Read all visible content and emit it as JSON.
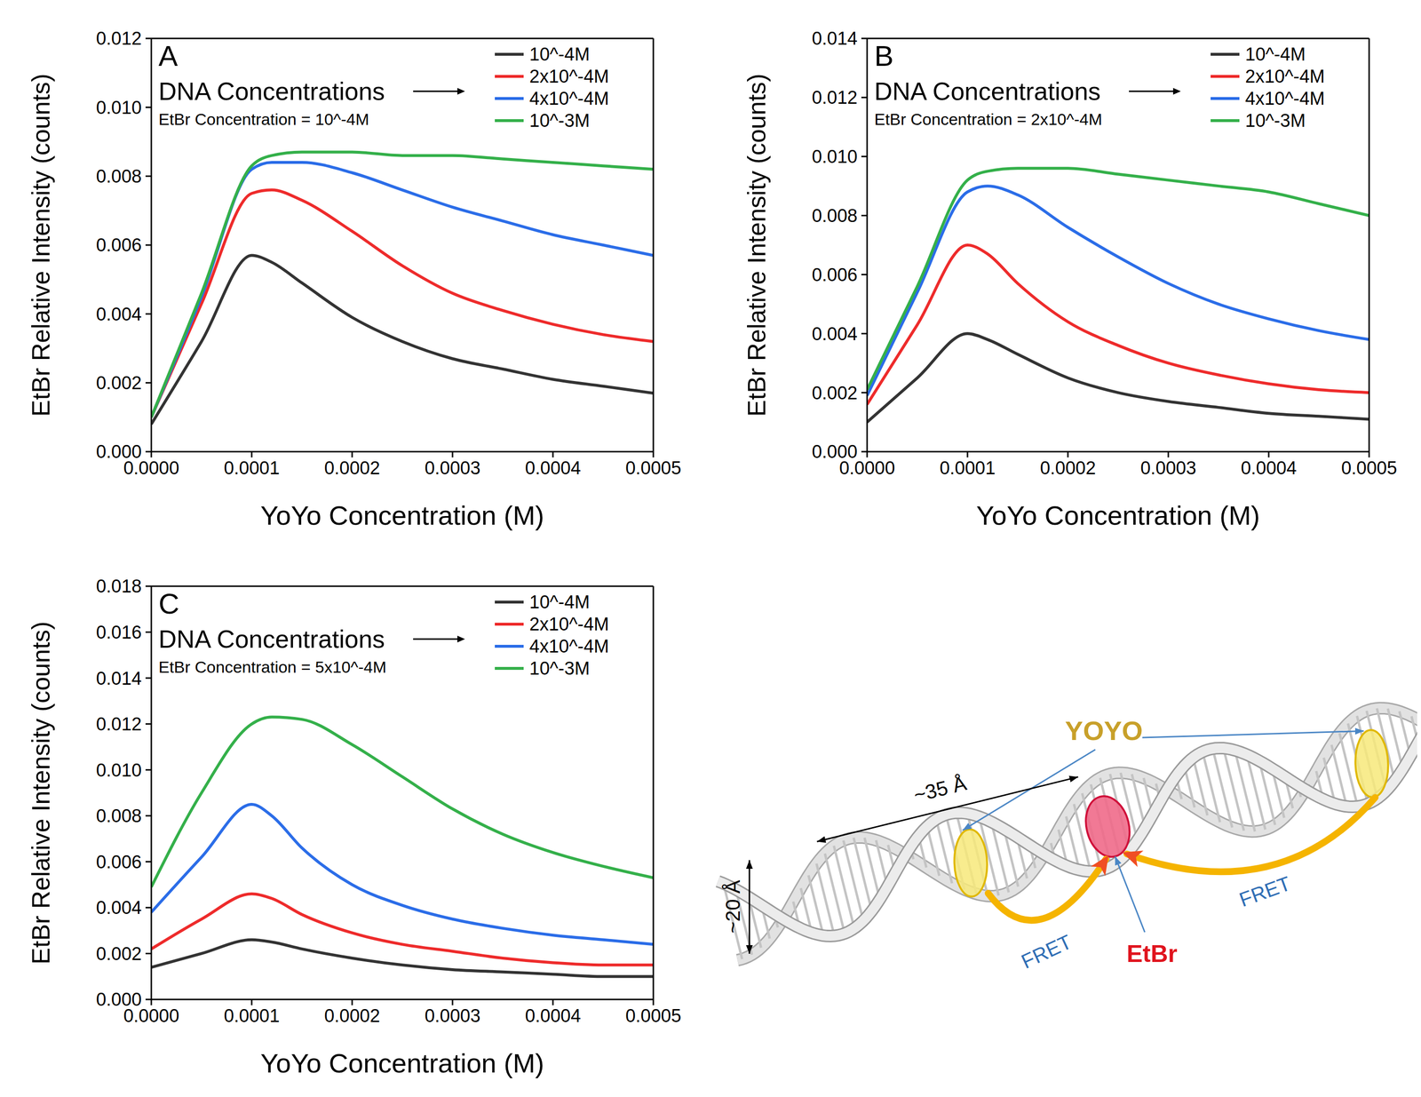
{
  "chart_data": [
    {
      "type": "line",
      "panel": "A",
      "annotations": [
        "DNA Concentrations",
        "EtBr Concentration = 10^-4M"
      ],
      "xlabel": "YoYo Concentration (M)",
      "ylabel": "EtBr Relative Intensity (counts)",
      "x": [
        0,
        5e-05,
        0.0001,
        0.00012,
        0.00015,
        0.0002,
        0.00025,
        0.0003,
        0.00035,
        0.0004,
        0.00045,
        0.0005
      ],
      "series": [
        {
          "name": "10^-4M",
          "color": "#333333",
          "values": [
            0.0008,
            0.0032,
            0.0057,
            0.0055,
            0.0049,
            0.0039,
            0.0032,
            0.0027,
            0.0024,
            0.0021,
            0.0019,
            0.0017
          ]
        },
        {
          "name": "2x10^-4M",
          "color": "#ee2b2b",
          "values": [
            0.001,
            0.0043,
            0.0075,
            0.0076,
            0.0073,
            0.0064,
            0.0054,
            0.0046,
            0.0041,
            0.0037,
            0.0034,
            0.0032
          ]
        },
        {
          "name": "4x10^-4M",
          "color": "#2b6de8",
          "values": [
            0.001,
            0.0045,
            0.0082,
            0.0084,
            0.0084,
            0.0081,
            0.0076,
            0.0071,
            0.0067,
            0.0063,
            0.006,
            0.0057
          ]
        },
        {
          "name": "10^-3M",
          "color": "#34b04a",
          "values": [
            0.001,
            0.0046,
            0.0083,
            0.0086,
            0.0087,
            0.0087,
            0.0086,
            0.0086,
            0.0085,
            0.0084,
            0.0083,
            0.0082
          ]
        }
      ],
      "xlim": [
        0,
        0.0005
      ],
      "ylim": [
        0,
        0.012
      ],
      "xticks": [
        {
          "value": 0,
          "label": "0.0000"
        },
        0.0001,
        0.0002,
        0.0003,
        0.0004,
        0.0005
      ],
      "yticks": [
        {
          "value": 0,
          "label": "0.000"
        },
        0.002,
        0.004,
        0.006,
        0.008,
        {
          "value": 0.01,
          "label": "0.010"
        },
        0.012
      ],
      "legend": "upper right",
      "grid": false
    },
    {
      "type": "line",
      "panel": "B",
      "annotations": [
        "DNA Concentrations",
        "EtBr Concentration = 2x10^-4M"
      ],
      "xlabel": "YoYo Concentration (M)",
      "ylabel": "EtBr Relative Intensity (counts)",
      "x": [
        0,
        5e-05,
        0.0001,
        0.00012,
        0.00015,
        0.0002,
        0.00025,
        0.0003,
        0.00035,
        0.0004,
        0.00045,
        0.0005
      ],
      "series": [
        {
          "name": "10^-4M",
          "color": "#333333",
          "values": [
            0.001,
            0.0025,
            0.004,
            0.0038,
            0.0033,
            0.0025,
            0.002,
            0.0017,
            0.0015,
            0.0013,
            0.0012,
            0.0011
          ]
        },
        {
          "name": "2x10^-4M",
          "color": "#ee2b2b",
          "values": [
            0.0016,
            0.0043,
            0.007,
            0.0067,
            0.0057,
            0.0044,
            0.0036,
            0.003,
            0.0026,
            0.0023,
            0.0021,
            0.002
          ]
        },
        {
          "name": "4x10^-4M",
          "color": "#2b6de8",
          "values": [
            0.0019,
            0.0054,
            0.0088,
            0.009,
            0.0087,
            0.0076,
            0.0066,
            0.0057,
            0.005,
            0.0045,
            0.0041,
            0.0038
          ]
        },
        {
          "name": "10^-3M",
          "color": "#34b04a",
          "values": [
            0.0021,
            0.0056,
            0.0092,
            0.0095,
            0.0096,
            0.0096,
            0.0094,
            0.0092,
            0.009,
            0.0088,
            0.0084,
            0.008
          ]
        }
      ],
      "xlim": [
        0,
        0.0005
      ],
      "ylim": [
        0,
        0.014
      ],
      "xticks": [
        {
          "value": 0,
          "label": "0.0000"
        },
        0.0001,
        0.0002,
        0.0003,
        0.0004,
        0.0005
      ],
      "yticks": [
        {
          "value": 0,
          "label": "0.000"
        },
        0.002,
        0.004,
        0.006,
        0.008,
        {
          "value": 0.01,
          "label": "0.010"
        },
        0.012,
        0.014
      ],
      "legend": "upper right",
      "grid": false
    },
    {
      "type": "line",
      "panel": "C",
      "annotations": [
        "DNA Concentrations",
        "EtBr Concentration = 5x10^-4M"
      ],
      "xlabel": "YoYo Concentration (M)",
      "ylabel": "EtBr Relative Intensity (counts)",
      "x": [
        0,
        5e-05,
        0.0001,
        0.00012,
        0.00015,
        0.0002,
        0.00025,
        0.0003,
        0.00035,
        0.0004,
        0.00045,
        0.0005
      ],
      "series": [
        {
          "name": "10^-4M",
          "color": "#333333",
          "values": [
            0.0014,
            0.002,
            0.0026,
            0.0025,
            0.0022,
            0.0018,
            0.0015,
            0.0013,
            0.0012,
            0.0011,
            0.001,
            0.001
          ]
        },
        {
          "name": "2x10^-4M",
          "color": "#ee2b2b",
          "values": [
            0.0022,
            0.0035,
            0.0046,
            0.0044,
            0.0037,
            0.0029,
            0.0024,
            0.0021,
            0.0018,
            0.0016,
            0.0015,
            0.0015
          ]
        },
        {
          "name": "4x10^-4M",
          "color": "#2b6de8",
          "values": [
            0.0038,
            0.0062,
            0.0085,
            0.008,
            0.0066,
            0.005,
            0.0041,
            0.0035,
            0.0031,
            0.0028,
            0.0026,
            0.0024
          ]
        },
        {
          "name": "10^-3M",
          "color": "#34b04a",
          "values": [
            0.0049,
            0.009,
            0.012,
            0.0123,
            0.0122,
            0.0111,
            0.0097,
            0.0083,
            0.0072,
            0.0064,
            0.0058,
            0.0053
          ]
        }
      ],
      "xlim": [
        0,
        0.0005
      ],
      "ylim": [
        0,
        0.018
      ],
      "xticks": [
        {
          "value": 0,
          "label": "0.0000"
        },
        0.0001,
        0.0002,
        0.0003,
        0.0004,
        0.0005
      ],
      "yticks": [
        {
          "value": 0,
          "label": "0.000"
        },
        0.002,
        0.004,
        0.006,
        0.008,
        {
          "value": 0.01,
          "label": "0.010"
        },
        0.012,
        0.014,
        0.016,
        0.018
      ],
      "legend": "upper right",
      "grid": false
    }
  ],
  "diagram": {
    "labels": {
      "yoyo": "YOYO",
      "etbr": "EtBr",
      "length": "~35 Å",
      "width": "~20 Å",
      "fret": [
        "FRET",
        "FRET"
      ]
    }
  }
}
